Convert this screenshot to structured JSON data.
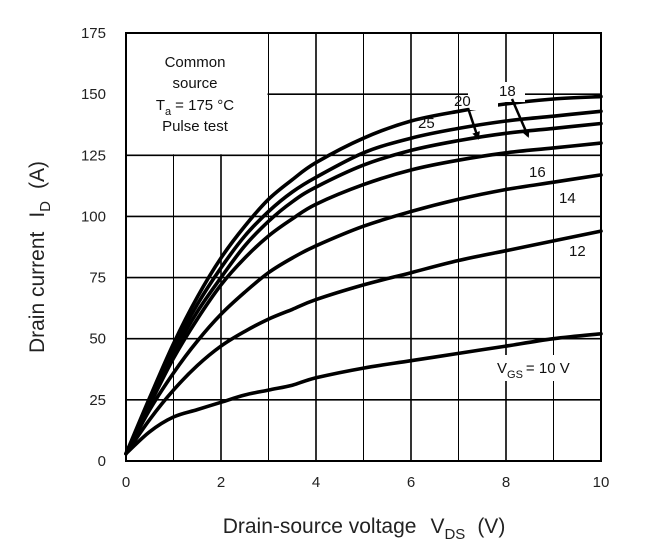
{
  "chart_data": {
    "type": "line",
    "xlabel_main": "Drain-source voltage",
    "xlabel_sym": "V",
    "xlabel_sub": "DS",
    "xlabel_unit": "(V)",
    "ylabel_main": "Drain current",
    "ylabel_sym": "I",
    "ylabel_sub": "D",
    "ylabel_unit": "(A)",
    "xlim": [
      0,
      10
    ],
    "ylim": [
      0,
      175
    ],
    "x_ticks": [
      "0",
      "2",
      "4",
      "6",
      "8",
      "10"
    ],
    "y_ticks": [
      "0",
      "25",
      "50",
      "75",
      "100",
      "125",
      "150",
      "175"
    ],
    "grid": true,
    "annotation": {
      "line1": "Common",
      "line2": "source",
      "ta_sym": "T",
      "ta_sub": "a",
      "ta_value": "= 175 °C",
      "line4": "Pulse test"
    },
    "vgs_prefix": "V",
    "vgs_sub": "GS",
    "series": [
      {
        "name": "25",
        "label": "25",
        "x": [
          0,
          0.5,
          1,
          1.5,
          2,
          2.5,
          3,
          3.5,
          4,
          5,
          6,
          7,
          8,
          9,
          10
        ],
        "values": [
          3,
          26,
          48,
          67,
          83,
          96,
          107,
          115,
          122,
          132,
          139,
          143,
          146,
          148,
          149
        ]
      },
      {
        "name": "20",
        "label": "20",
        "x": [
          0,
          0.5,
          1,
          1.5,
          2,
          2.5,
          3,
          3.5,
          4,
          5,
          6,
          7,
          8,
          9,
          10
        ],
        "values": [
          3,
          25,
          46,
          64,
          79,
          92,
          102,
          110,
          116,
          126,
          132,
          136,
          139,
          141,
          143
        ]
      },
      {
        "name": "18",
        "label": "18",
        "x": [
          0,
          0.5,
          1,
          1.5,
          2,
          2.5,
          3,
          3.5,
          4,
          5,
          6,
          7,
          8,
          9,
          10
        ],
        "values": [
          3,
          24,
          44,
          61,
          75,
          88,
          98,
          106,
          112,
          121,
          127,
          131,
          134,
          136,
          138
        ]
      },
      {
        "name": "16",
        "label": "16",
        "x": [
          0,
          0.5,
          1,
          1.5,
          2,
          2.5,
          3,
          3.5,
          4,
          5,
          6,
          7,
          8,
          9,
          10
        ],
        "values": [
          3,
          23,
          42,
          58,
          72,
          83,
          92,
          99,
          105,
          113,
          119,
          123,
          126,
          128,
          130
        ]
      },
      {
        "name": "14",
        "label": "14",
        "x": [
          0,
          0.5,
          1,
          1.5,
          2,
          2.5,
          3,
          3.5,
          4,
          5,
          6,
          7,
          8,
          9,
          10
        ],
        "values": [
          3,
          21,
          36,
          49,
          60,
          69,
          77,
          83,
          88,
          96,
          102,
          107,
          111,
          114,
          117
        ]
      },
      {
        "name": "12",
        "label": "12",
        "x": [
          0,
          0.5,
          1,
          1.5,
          2,
          2.5,
          3,
          3.5,
          4,
          5,
          6,
          7,
          8,
          9,
          10
        ],
        "values": [
          3,
          17,
          29,
          39,
          47,
          53,
          58,
          62,
          66,
          72,
          77,
          82,
          86,
          90,
          94
        ]
      },
      {
        "name": "10",
        "label": "= 10 V",
        "x": [
          0,
          0.5,
          1,
          1.5,
          2,
          2.5,
          3,
          3.5,
          4,
          5,
          6,
          7,
          8,
          9,
          10
        ],
        "values": [
          3,
          12,
          18,
          21,
          24,
          27,
          29,
          31,
          34,
          38,
          41,
          44,
          47,
          50,
          52
        ]
      }
    ]
  }
}
